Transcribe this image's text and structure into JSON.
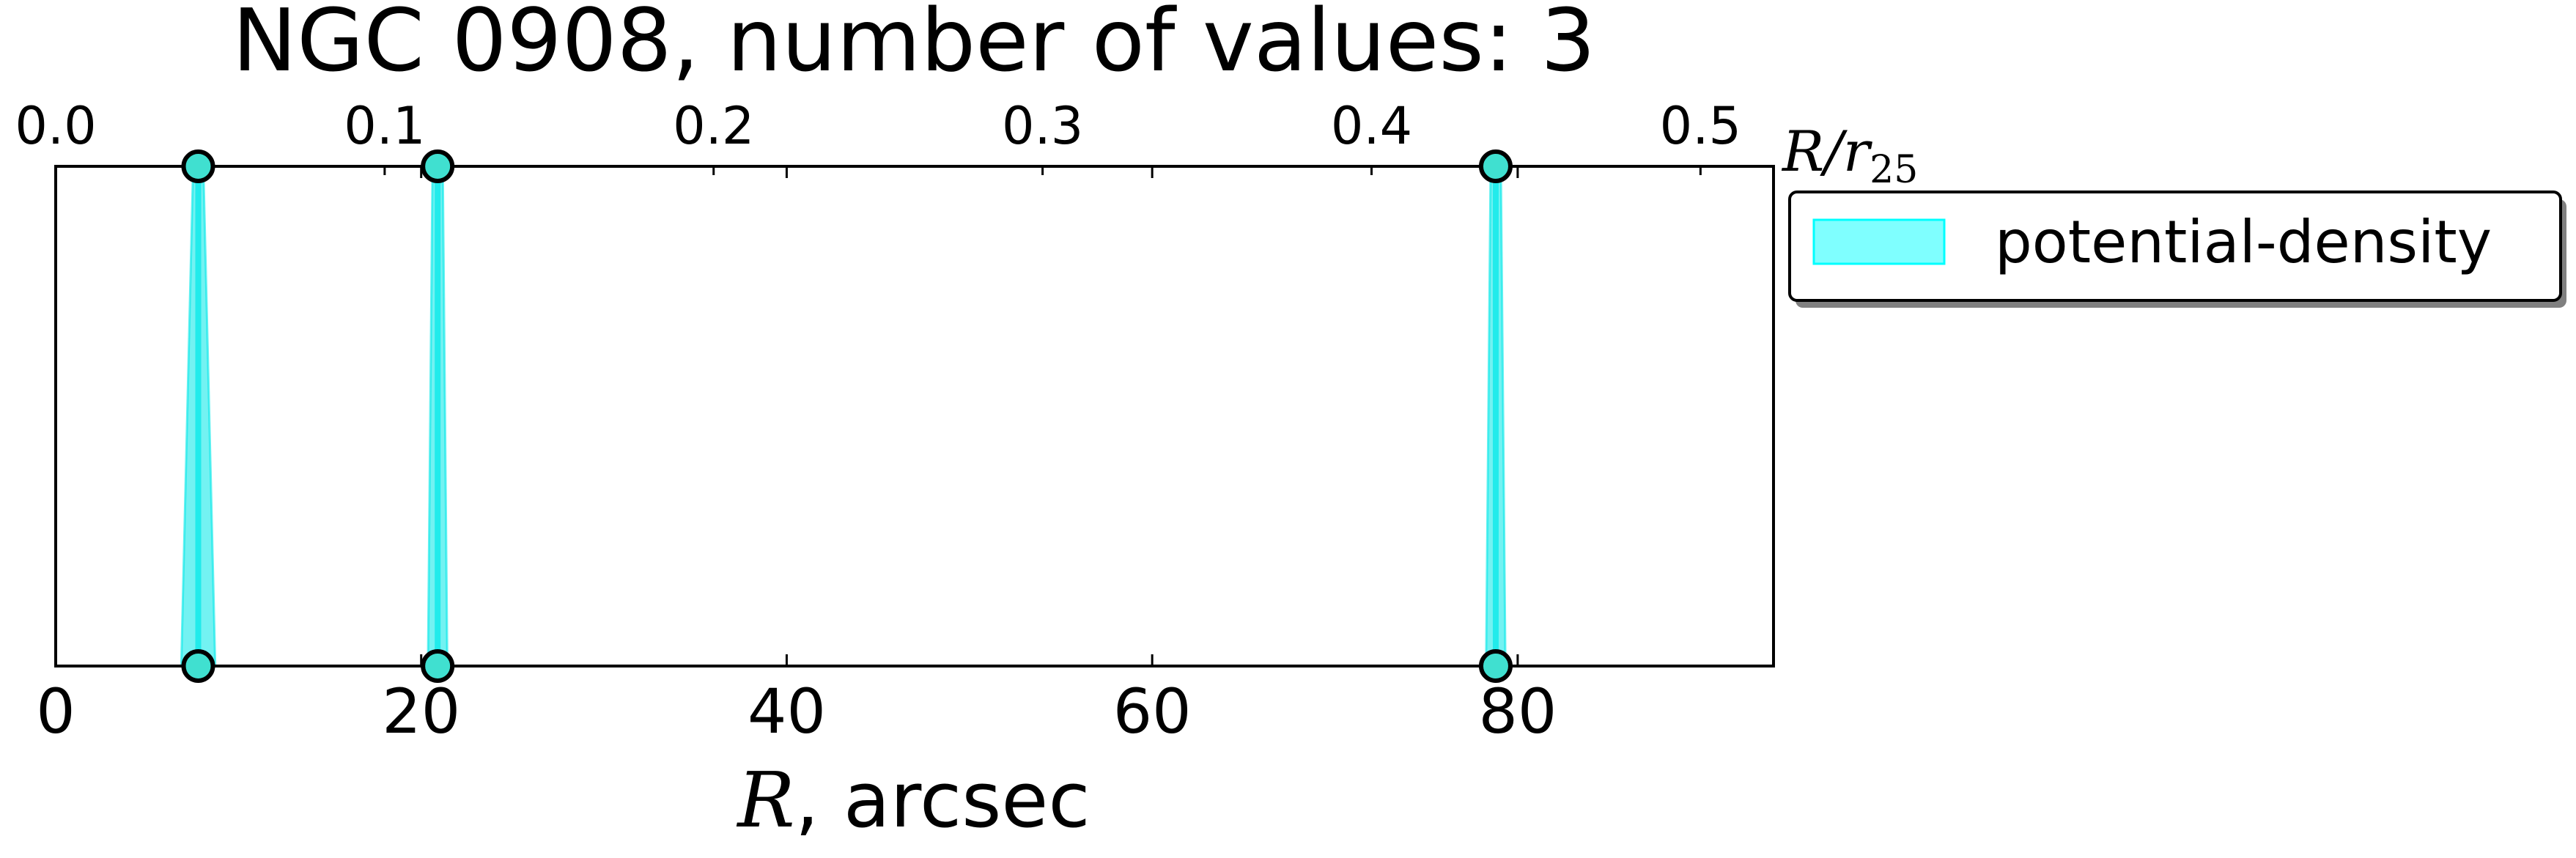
{
  "chart_data": {
    "type": "scatter",
    "title": "NGC 0908, number of values: 3",
    "xlabel": {
      "symbol": "R",
      "rest": ", arcsec"
    },
    "x2label": {
      "numer": "R/r",
      "sub": "25"
    },
    "xlim": [
      0,
      94
    ],
    "x2lim": [
      0,
      0.5222
    ],
    "xticks": [
      0,
      20,
      40,
      60,
      80
    ],
    "xtick_labels": [
      "0",
      "20",
      "40",
      "60",
      "80"
    ],
    "x2ticks": [
      0.0,
      0.1,
      0.2,
      0.3,
      0.4,
      0.5
    ],
    "x2tick_labels": [
      "0.0",
      "0.1",
      "0.2",
      "0.3",
      "0.4",
      "0.5"
    ],
    "yticks_visible": false,
    "grid": false,
    "legend": {
      "placement": "outside-right-top",
      "entries": [
        {
          "label": "potential-density",
          "color": "#00ffff"
        }
      ]
    },
    "series": [
      {
        "name": "potential-density",
        "color": "#00e8e8",
        "marker_face": "#40e0d0",
        "bands": [
          {
            "top_x": 7.8,
            "bottom_x": 7.8,
            "bottom_width": 1.3
          },
          {
            "top_x": 20.9,
            "bottom_x": 20.9,
            "bottom_width": 0.5
          },
          {
            "top_x": 78.8,
            "bottom_x": 78.8,
            "bottom_width": 0.5
          }
        ],
        "points": [
          {
            "x": 7.8,
            "edge": "top"
          },
          {
            "x": 20.9,
            "edge": "top"
          },
          {
            "x": 78.8,
            "edge": "top"
          },
          {
            "x": 7.8,
            "edge": "bottom"
          },
          {
            "x": 20.9,
            "edge": "bottom"
          },
          {
            "x": 78.8,
            "edge": "bottom"
          }
        ]
      }
    ]
  }
}
